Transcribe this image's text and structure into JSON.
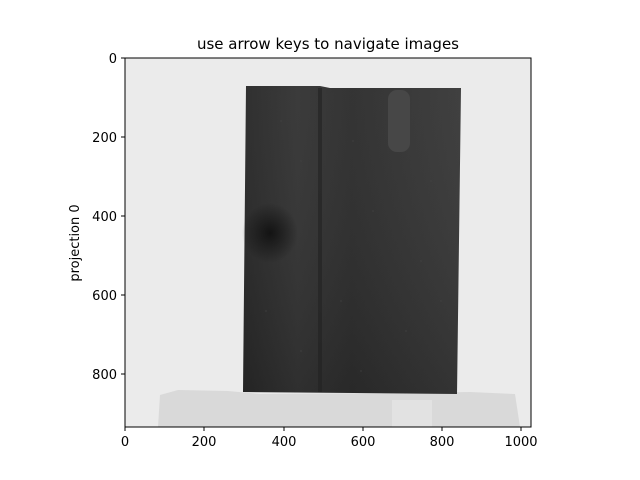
{
  "figure": {
    "title": "use arrow keys to navigate images",
    "ylabel": "projection 0",
    "xlabel": ""
  },
  "image_view": {
    "icon": "grayscale-projection-image",
    "colors": {
      "background": "#ebebeb",
      "object_dark": "#2e2e2e",
      "object_mid": "#3a3a3a",
      "base_light": "#d8d8d8",
      "axes_frame": "#000000"
    }
  },
  "axes": {
    "x_ticks": [
      "0",
      "200",
      "400",
      "600",
      "800",
      "1000"
    ],
    "y_ticks": [
      "0",
      "200",
      "400",
      "600",
      "800"
    ],
    "xlim": [
      0,
      1025
    ],
    "ylim_top_to_bottom": [
      0,
      935
    ]
  }
}
